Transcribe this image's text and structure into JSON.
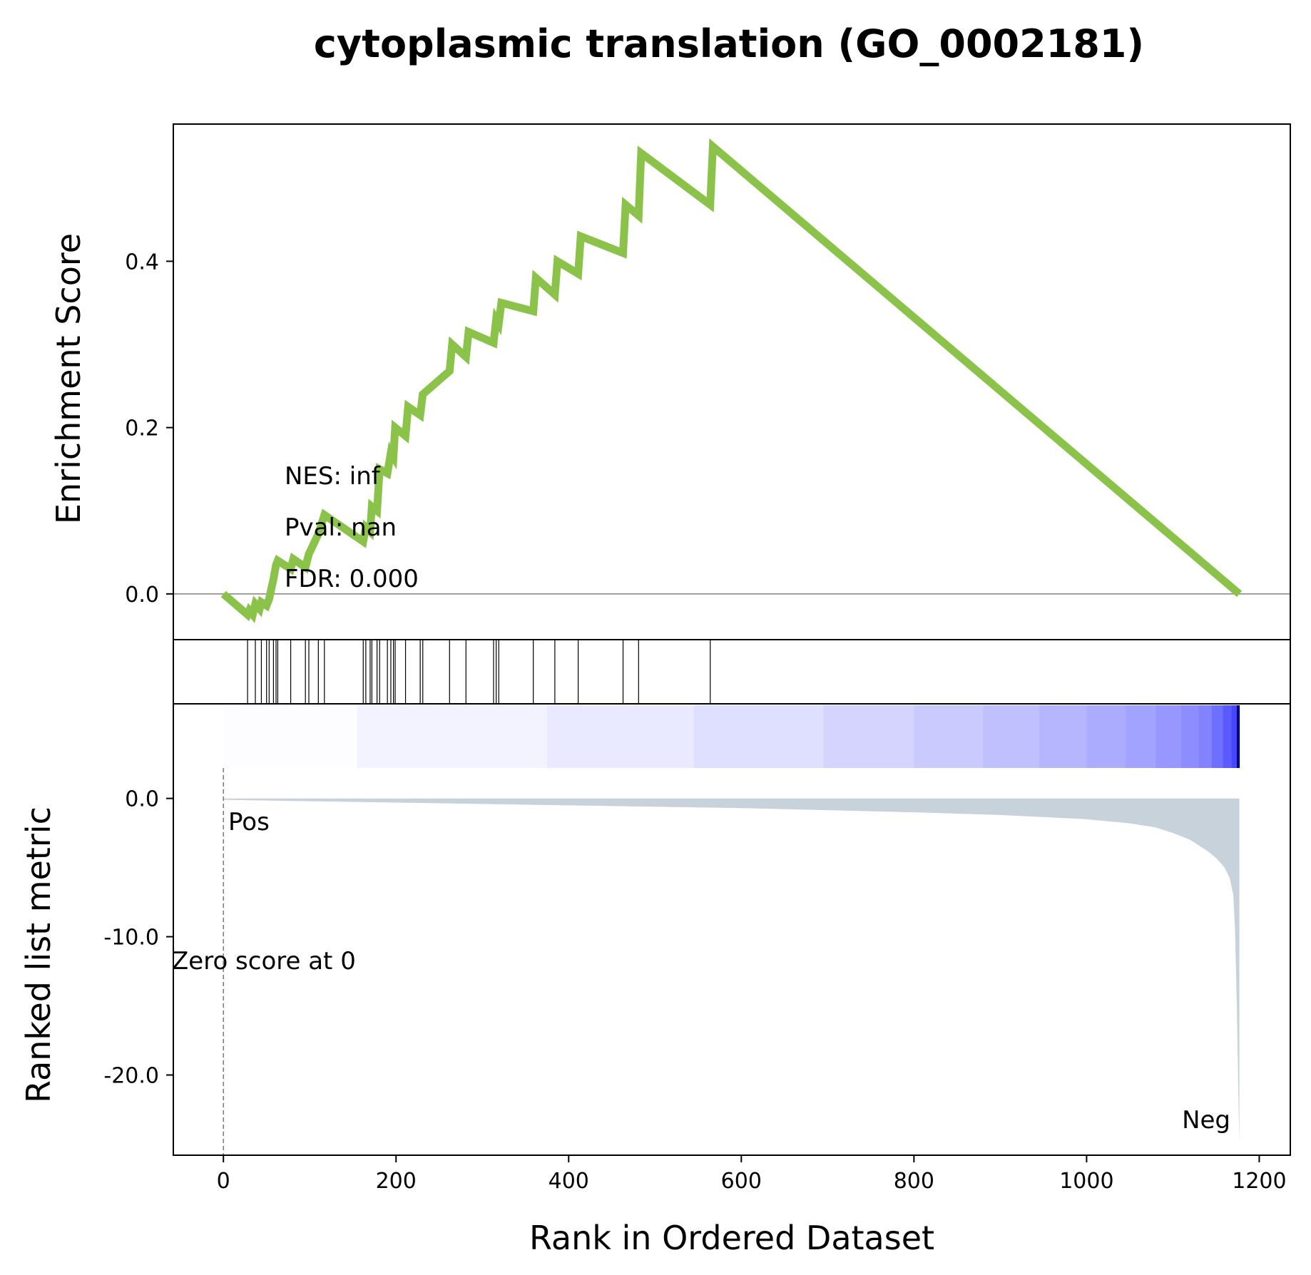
{
  "chart_data": {
    "type": "line",
    "title": "cytoplasmic translation (GO_0002181)",
    "xlabel": "Rank in Ordered Dataset",
    "xlim": [
      -58,
      1236
    ],
    "x_ticks": [
      0,
      200,
      400,
      600,
      800,
      1000,
      1200
    ],
    "x_tick_labels": [
      "0",
      "200",
      "400",
      "600",
      "800",
      "1000",
      "1200"
    ],
    "enrichment": {
      "ylabel": "Enrichment Score",
      "ylim": [
        -0.055,
        0.565
      ],
      "y_ticks": [
        0.0,
        0.2,
        0.4
      ],
      "y_tick_labels": [
        "0.0",
        "0.2",
        "0.4"
      ],
      "line_color": "#8bc34a",
      "x": [
        0,
        28,
        30,
        34,
        37,
        42,
        44,
        50,
        53,
        58,
        61,
        63,
        78,
        81,
        95,
        99,
        110,
        117,
        162,
        165,
        170,
        172,
        178,
        181,
        190,
        194,
        197,
        199,
        211,
        214,
        228,
        231,
        262,
        265,
        281,
        284,
        313,
        316,
        319,
        322,
        359,
        362,
        384,
        387,
        411,
        414,
        463,
        466,
        481,
        484,
        564,
        567,
        1177
      ],
      "y": [
        0.0,
        -0.025,
        -0.02,
        -0.025,
        -0.012,
        -0.018,
        -0.01,
        -0.014,
        -0.006,
        0.018,
        0.035,
        0.04,
        0.03,
        0.042,
        0.032,
        0.048,
        0.072,
        0.095,
        0.063,
        0.08,
        0.075,
        0.105,
        0.1,
        0.15,
        0.145,
        0.17,
        0.165,
        0.2,
        0.19,
        0.225,
        0.215,
        0.24,
        0.268,
        0.3,
        0.285,
        0.315,
        0.302,
        0.33,
        0.325,
        0.35,
        0.34,
        0.38,
        0.36,
        0.4,
        0.385,
        0.43,
        0.41,
        0.468,
        0.455,
        0.53,
        0.468,
        0.538,
        0.0
      ],
      "annotations": [
        "NES: inf",
        "Pval: nan",
        "FDR: 0.000"
      ]
    },
    "hits": {
      "positions": [
        28,
        37,
        44,
        50,
        53,
        58,
        61,
        63,
        78,
        95,
        99,
        110,
        117,
        162,
        165,
        170,
        172,
        178,
        181,
        190,
        194,
        197,
        199,
        211,
        228,
        231,
        262,
        281,
        313,
        316,
        319,
        359,
        384,
        411,
        463,
        481,
        564
      ]
    },
    "heatmap": {
      "colormap": "white-to-blue",
      "x_range": [
        0,
        1177
      ],
      "stops": [
        {
          "x": 0,
          "level": 0.0
        },
        {
          "x": 155,
          "level": 0.05
        },
        {
          "x": 375,
          "level": 0.1
        },
        {
          "x": 545,
          "level": 0.15
        },
        {
          "x": 695,
          "level": 0.2
        },
        {
          "x": 800,
          "level": 0.25
        },
        {
          "x": 880,
          "level": 0.3
        },
        {
          "x": 945,
          "level": 0.35
        },
        {
          "x": 1000,
          "level": 0.4
        },
        {
          "x": 1045,
          "level": 0.45
        },
        {
          "x": 1080,
          "level": 0.5
        },
        {
          "x": 1110,
          "level": 0.55
        },
        {
          "x": 1130,
          "level": 0.6
        },
        {
          "x": 1145,
          "level": 0.7
        },
        {
          "x": 1158,
          "level": 0.8
        },
        {
          "x": 1168,
          "level": 0.9
        },
        {
          "x": 1174,
          "level": 1.0
        }
      ]
    },
    "ranked_metric": {
      "ylabel": "Ranked list metric",
      "ylim": [
        -25.8,
        2.2
      ],
      "y_ticks": [
        0.0,
        -10.0,
        -20.0
      ],
      "y_tick_labels": [
        "0.0",
        "-10.0",
        "-20.0"
      ],
      "fill_color": "#c7d2da",
      "x": [
        0,
        200,
        400,
        600,
        800,
        900,
        1000,
        1050,
        1080,
        1100,
        1120,
        1140,
        1150,
        1160,
        1166,
        1170,
        1172,
        1174,
        1176,
        1177
      ],
      "y": [
        -0.1,
        -0.3,
        -0.5,
        -0.7,
        -1.0,
        -1.2,
        -1.5,
        -1.8,
        -2.1,
        -2.5,
        -3.0,
        -3.8,
        -4.3,
        -5.0,
        -5.8,
        -7.0,
        -9.5,
        -15.0,
        -22.0,
        -25.0
      ],
      "zero_score_label": "Zero score at 0",
      "zero_x": 0,
      "pos_label": "Pos",
      "neg_label": "Neg",
      "pos_color": "#ff0000",
      "neg_color": "#0000ff"
    }
  }
}
